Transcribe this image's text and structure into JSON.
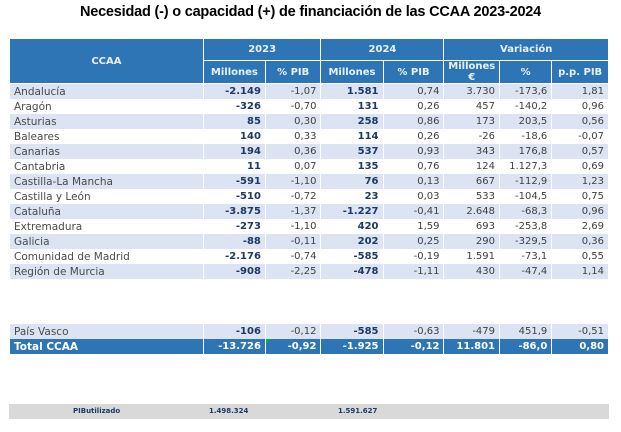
{
  "title": "Necesidad (-) o capacidad (+) de financiación de las CCAA 2023-2024",
  "header": {
    "ccaa": "CCAA",
    "groups": [
      "2023",
      "2024",
      "Variación"
    ],
    "subheaders": [
      "Millones",
      "% PIB",
      "Millones",
      "% PIB",
      "Millones €",
      "%",
      "p.p. PIB"
    ]
  },
  "rows": [
    {
      "name": "Andalucía",
      "m2023": "-2.149",
      "p2023": "-1,07",
      "m2024": "1.581",
      "p2024": "0,74",
      "vm": "3.730",
      "vp": "-173,6",
      "vpp": "1,81"
    },
    {
      "name": "Aragón",
      "m2023": "-326",
      "p2023": "-0,70",
      "m2024": "131",
      "p2024": "0,26",
      "vm": "457",
      "vp": "-140,2",
      "vpp": "0,96"
    },
    {
      "name": "Asturias",
      "m2023": "85",
      "p2023": "0,30",
      "m2024": "258",
      "p2024": "0,86",
      "vm": "173",
      "vp": "203,5",
      "vpp": "0,56"
    },
    {
      "name": "Baleares",
      "m2023": "140",
      "p2023": "0,33",
      "m2024": "114",
      "p2024": "0,26",
      "vm": "-26",
      "vp": "-18,6",
      "vpp": "-0,07"
    },
    {
      "name": "Canarias",
      "m2023": "194",
      "p2023": "0,36",
      "m2024": "537",
      "p2024": "0,93",
      "vm": "343",
      "vp": "176,8",
      "vpp": "0,57"
    },
    {
      "name": "Cantabria",
      "m2023": "11",
      "p2023": "0,07",
      "m2024": "135",
      "p2024": "0,76",
      "vm": "124",
      "vp": "1.127,3",
      "vpp": "0,69"
    },
    {
      "name": "Castilla-La Mancha",
      "m2023": "-591",
      "p2023": "-1,10",
      "m2024": "76",
      "p2024": "0,13",
      "vm": "667",
      "vp": "-112,9",
      "vpp": "1,23"
    },
    {
      "name": "Castilla y León",
      "m2023": "-510",
      "p2023": "-0,72",
      "m2024": "23",
      "p2024": "0,03",
      "vm": "533",
      "vp": "-104,5",
      "vpp": "0,75"
    },
    {
      "name": "Cataluña",
      "m2023": "-3.875",
      "p2023": "-1,37",
      "m2024": "-1.227",
      "p2024": "-0,41",
      "vm": "2.648",
      "vp": "-68,3",
      "vpp": "0,96"
    },
    {
      "name": "Extremadura",
      "m2023": "-273",
      "p2023": "-1,10",
      "m2024": "420",
      "p2024": "1,59",
      "vm": "693",
      "vp": "-253,8",
      "vpp": "2,69"
    },
    {
      "name": "Galicia",
      "m2023": "-88",
      "p2023": "-0,11",
      "m2024": "202",
      "p2024": "0,25",
      "vm": "290",
      "vp": "-329,5",
      "vpp": "0,36"
    },
    {
      "name": "Comunidad de Madrid",
      "m2023": "-2.176",
      "p2023": "-0,74",
      "m2024": "-585",
      "p2024": "-0,19",
      "vm": "1.591",
      "vp": "-73,1",
      "vpp": "0,55"
    },
    {
      "name": "Región de Murcia",
      "m2023": "-908",
      "p2023": "-2,25",
      "m2024": "-478",
      "p2024": "-1,11",
      "vm": "430",
      "vp": "-47,4",
      "vpp": "1,14"
    }
  ],
  "pais_vasco": {
    "name": "País Vasco",
    "m2023": "-106",
    "p2023": "-0,12",
    "m2024": "-585",
    "p2024": "-0,63",
    "vm": "-479",
    "vp": "451,9",
    "vpp": "-0,51"
  },
  "total": {
    "name": "Total CCAA",
    "m2023": "-13.726",
    "p2023": "-0,92",
    "m2024": "-1.925",
    "p2024": "-0,12",
    "vm": "11.801",
    "vp": "-86,0",
    "vpp": "0,80"
  },
  "pib_utilizado": {
    "label": "PIButilizado",
    "v2023": "1.498.324",
    "v2024": "1.591.627"
  }
}
